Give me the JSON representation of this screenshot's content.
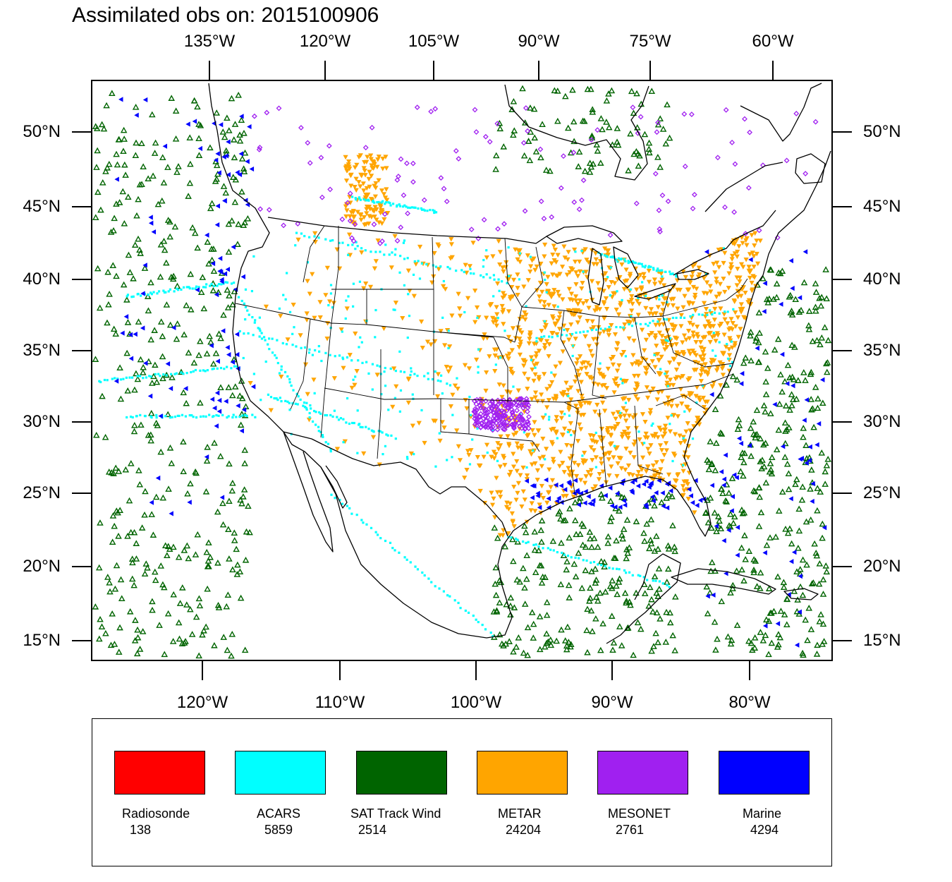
{
  "title": "Assimilated obs on: 2015100906",
  "map": {
    "top_lon_labels": [
      "135°W",
      "120°W",
      "105°W",
      "90°W",
      "75°W",
      "60°W"
    ],
    "bottom_lon_labels": [
      "120°W",
      "110°W",
      "100°W",
      "90°W",
      "80°W"
    ],
    "left_lat_labels": [
      "50°N",
      "45°N",
      "40°N",
      "35°N",
      "30°N",
      "25°N",
      "20°N",
      "15°N"
    ],
    "right_lat_labels": [
      "50°N",
      "45°N",
      "40°N",
      "35°N",
      "30°N",
      "25°N",
      "20°N",
      "15°N"
    ]
  },
  "legend": [
    {
      "name": "Radiosonde",
      "count": "138",
      "color": "#ff0000",
      "icon": "square-swatch"
    },
    {
      "name": "ACARS",
      "count": "5859",
      "color": "#00ffff",
      "icon": "dot-marker"
    },
    {
      "name": "SAT Track Wind",
      "count": "2514",
      "color": "#006400",
      "icon": "triangle-up-marker"
    },
    {
      "name": "METAR",
      "count": "24204",
      "color": "#ffa500",
      "icon": "triangle-down-marker"
    },
    {
      "name": "MESONET",
      "count": "2761",
      "color": "#a020f0",
      "icon": "diamond-marker"
    },
    {
      "name": "Marine",
      "count": "4294",
      "color": "#0000ff",
      "icon": "triangle-left-marker"
    }
  ]
}
